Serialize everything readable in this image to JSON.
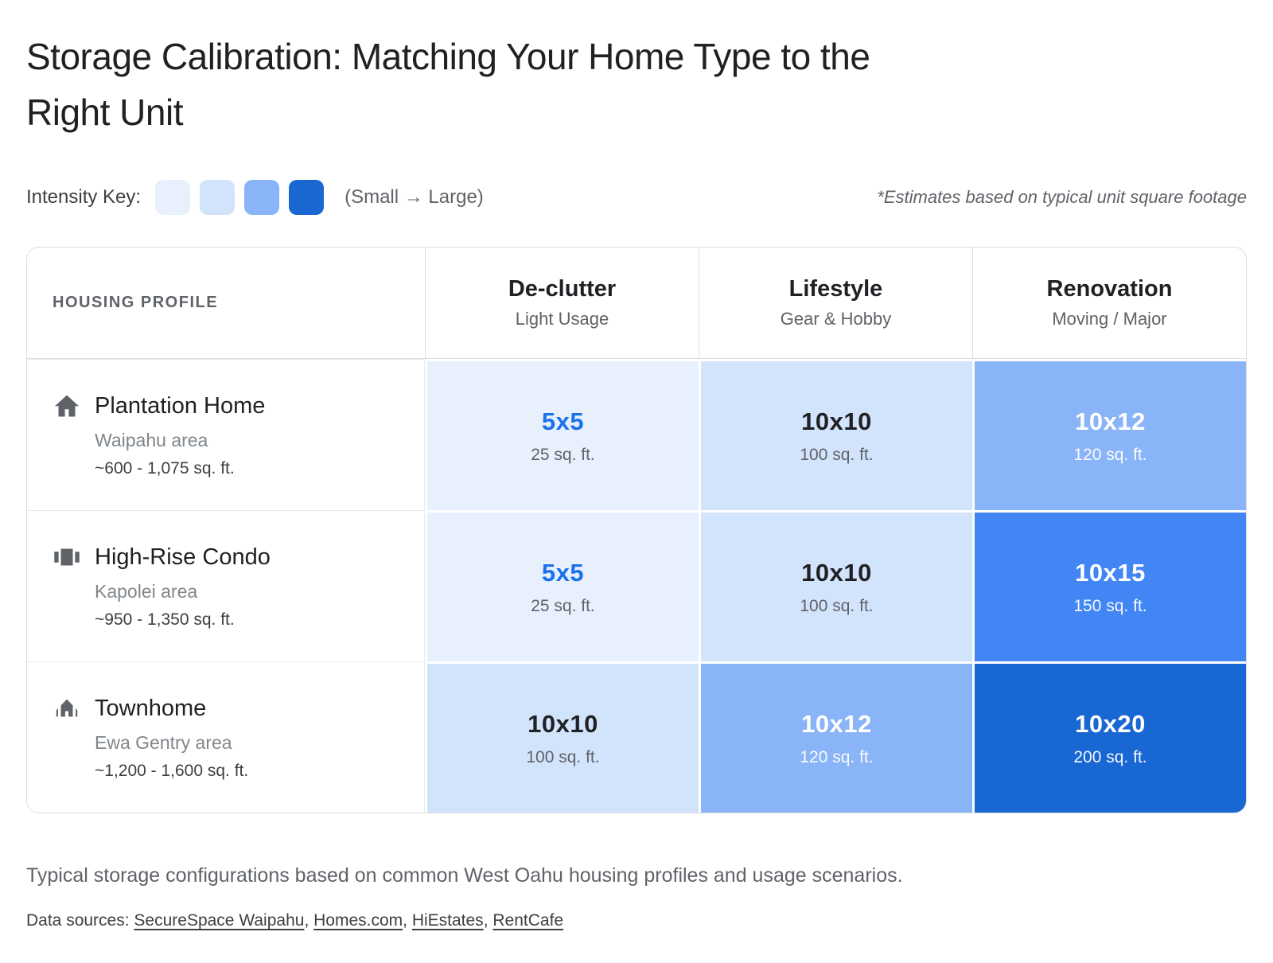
{
  "page": {
    "title_line1": "Storage Calibration: Matching Your Home Type to the",
    "title_line2": "Right Unit",
    "legend": {
      "label": "Intensity Key:",
      "range_label": "(Small → Large)",
      "swatch_colors": [
        "#E8F0FE",
        "#D2E3FC",
        "#8AB4F8",
        "#1A67D2"
      ]
    },
    "footnote": "*Estimates based on typical unit square footage",
    "footer": {
      "caption": "Typical storage configurations based on common West Oahu housing profiles and usage scenarios.",
      "sources_label": "Data sources:",
      "sources": [
        "SecureSpace Waipahu",
        "Homes.com",
        "HiEstates",
        "RentCafe"
      ]
    }
  },
  "chart_data": {
    "type": "heatmap",
    "title": "Storage Calibration: Matching Your Home Type to the Right Unit",
    "corner_header": "HOUSING PROFILE",
    "columns": [
      {
        "label": "De-clutter",
        "sublabel": "Light Usage"
      },
      {
        "label": "Lifestyle",
        "sublabel": "Gear & Hobby"
      },
      {
        "label": "Renovation",
        "sublabel": "Moving / Major"
      }
    ],
    "rows": [
      {
        "name": "Plantation Home",
        "area": "Waipahu area",
        "range": "~600 - 1,075 sq. ft.",
        "icon": "home-icon",
        "cells": [
          {
            "unit": "5x5",
            "sqft": "25 sq. ft.",
            "sqft_value": 25,
            "level": 1
          },
          {
            "unit": "10x10",
            "sqft": "100 sq. ft.",
            "sqft_value": 100,
            "level": 2
          },
          {
            "unit": "10x12",
            "sqft": "120 sq. ft.",
            "sqft_value": 120,
            "level": 3
          }
        ]
      },
      {
        "name": "High-Rise Condo",
        "area": "Kapolei area",
        "range": "~950 - 1,350 sq. ft.",
        "icon": "condo-icon",
        "cells": [
          {
            "unit": "5x5",
            "sqft": "25 sq. ft.",
            "sqft_value": 25,
            "level": 1
          },
          {
            "unit": "10x10",
            "sqft": "100 sq. ft.",
            "sqft_value": 100,
            "level": 2
          },
          {
            "unit": "10x15",
            "sqft": "150 sq. ft.",
            "sqft_value": 150,
            "level": 4
          }
        ]
      },
      {
        "name": "Townhome",
        "area": "Ewa Gentry area",
        "range": "~1,200 - 1,600 sq. ft.",
        "icon": "townhome-icon",
        "cells": [
          {
            "unit": "10x10",
            "sqft": "100 sq. ft.",
            "sqft_value": 100,
            "level": 2
          },
          {
            "unit": "10x12",
            "sqft": "120 sq. ft.",
            "sqft_value": 120,
            "level": 3
          },
          {
            "unit": "10x20",
            "sqft": "200 sq. ft.",
            "sqft_value": 200,
            "level": 5
          }
        ]
      }
    ],
    "levels": [
      {
        "bg": "#E8F0FE",
        "unit_color": "#1A73E8",
        "sub_color": "#5F6368"
      },
      {
        "bg": "#D2E3FC",
        "unit_color": "#202124",
        "sub_color": "#5F6368"
      },
      {
        "bg": "#8AB4F8",
        "unit_color": "#FFFFFF",
        "sub_color": "rgba(255,255,255,0.95)"
      },
      {
        "bg": "#4285F4",
        "unit_color": "#FFFFFF",
        "sub_color": "rgba(255,255,255,0.95)"
      },
      {
        "bg": "#1967D2",
        "unit_color": "#FFFFFF",
        "sub_color": "rgba(255,255,255,0.95)"
      }
    ],
    "legend_note": "(Small → Large)",
    "layout": {
      "grid": false,
      "legend_position": "top-left"
    }
  }
}
